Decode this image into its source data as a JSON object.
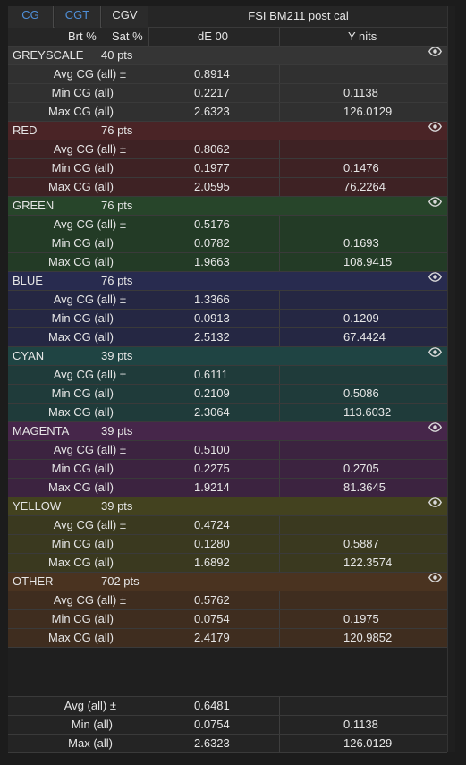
{
  "tabs": [
    "CG",
    "CGT",
    "CGV"
  ],
  "title": "FSI BM211 post cal",
  "subheader": {
    "brt": "Brt %",
    "sat": "Sat %",
    "de": "dE 00",
    "y": "Y nits"
  },
  "row_labels": {
    "avg": "Avg CG (all) ±",
    "min": "Min CG (all)",
    "max": "Max CG (all)"
  },
  "sections": [
    {
      "name": "GREYSCALE",
      "pts": "40 pts",
      "avg": "0.8914",
      "min": "0.2217",
      "min_y": "0.1138",
      "max": "2.6323",
      "max_y": "126.0129",
      "head_color": "#353535",
      "row_color": "#303030"
    },
    {
      "name": "RED",
      "pts": "76 pts",
      "avg": "0.8062",
      "min": "0.1977",
      "min_y": "0.1476",
      "max": "2.0595",
      "max_y": "76.2264",
      "head_color": "#4a2426",
      "row_color": "#3e2224"
    },
    {
      "name": "GREEN",
      "pts": "76 pts",
      "avg": "0.5176",
      "min": "0.0782",
      "min_y": "0.1693",
      "max": "1.9663",
      "max_y": "108.9415",
      "head_color": "#27452a",
      "row_color": "#233b26"
    },
    {
      "name": "BLUE",
      "pts": "76 pts",
      "avg": "1.3366",
      "min": "0.0913",
      "min_y": "0.1209",
      "max": "2.5132",
      "max_y": "67.4424",
      "head_color": "#282b4f",
      "row_color": "#252743"
    },
    {
      "name": "CYAN",
      "pts": "39 pts",
      "avg": "0.6111",
      "min": "0.2109",
      "min_y": "0.5086",
      "max": "2.3064",
      "max_y": "113.6032",
      "head_color": "#1f4443",
      "row_color": "#1f3b3a"
    },
    {
      "name": "MAGENTA",
      "pts": "39 pts",
      "avg": "0.5100",
      "min": "0.2275",
      "min_y": "0.2705",
      "max": "1.9214",
      "max_y": "81.3645",
      "head_color": "#46264a",
      "row_color": "#3c2340"
    },
    {
      "name": "YELLOW",
      "pts": "39 pts",
      "avg": "0.4724",
      "min": "0.1280",
      "min_y": "0.5887",
      "max": "1.6892",
      "max_y": "122.3574",
      "head_color": "#43421f",
      "row_color": "#3a391f"
    },
    {
      "name": "OTHER",
      "pts": "702 pts",
      "avg": "0.5762",
      "min": "0.0754",
      "min_y": "0.1975",
      "max": "2.4179",
      "max_y": "120.9852",
      "head_color": "#4a3320",
      "row_color": "#3f2d1f"
    }
  ],
  "footer": {
    "avg_label": "Avg (all) ±",
    "avg": "0.6481",
    "min_label": "Min (all)",
    "min": "0.0754",
    "min_y": "0.1138",
    "max_label": "Max (all)",
    "max": "2.6323",
    "max_y": "126.0129"
  }
}
